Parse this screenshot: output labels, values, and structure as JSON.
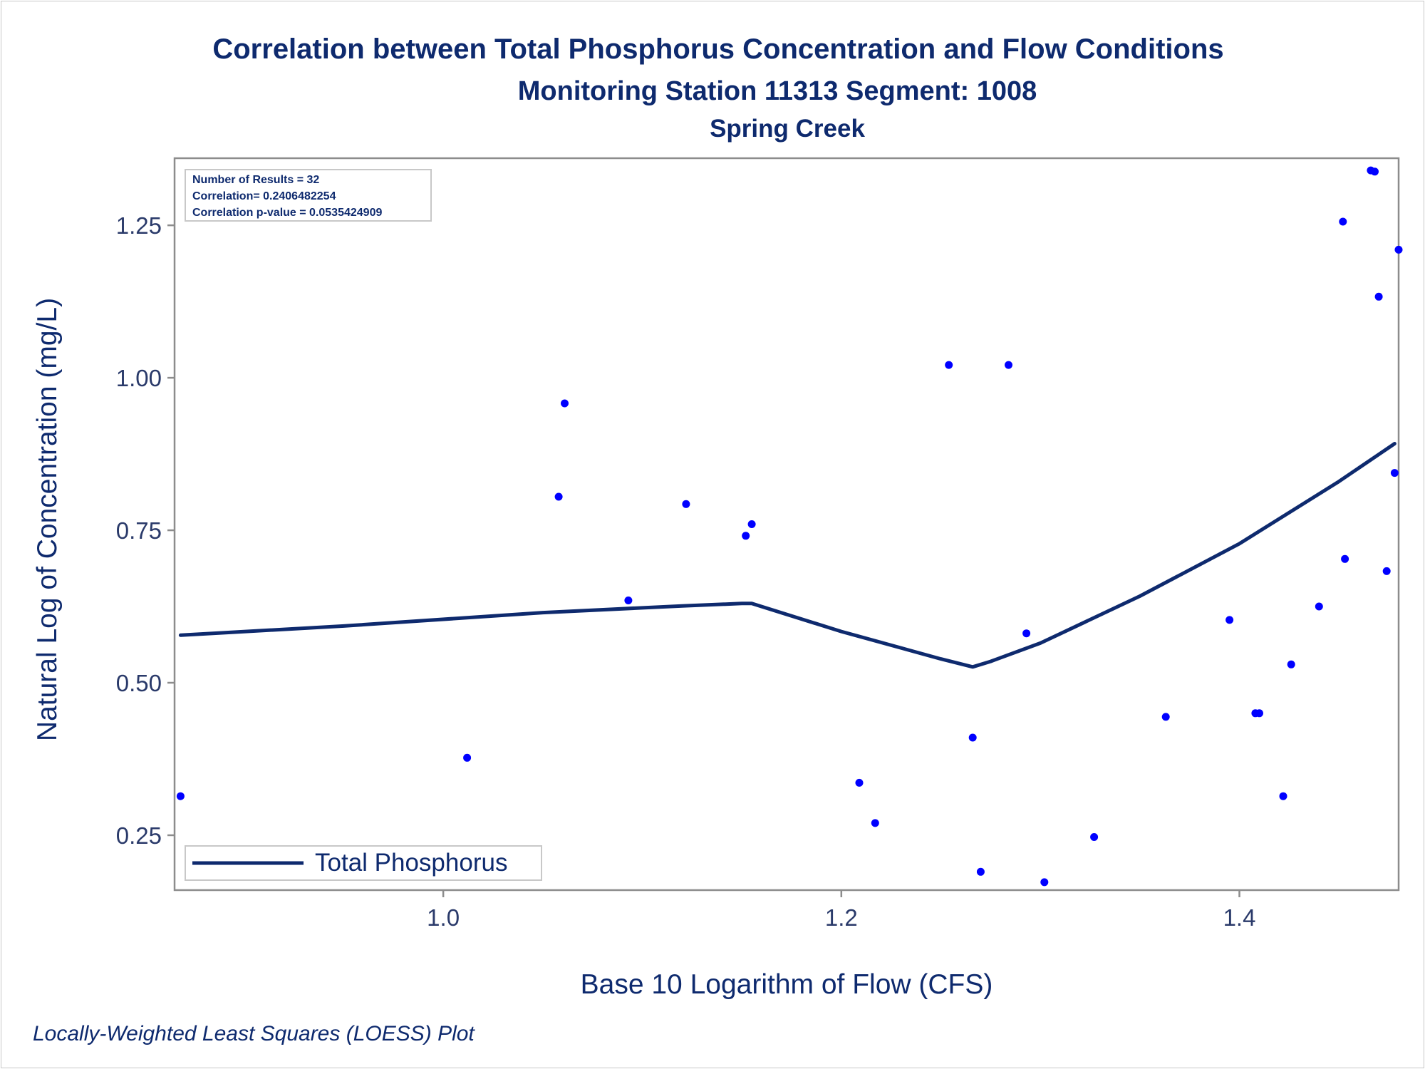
{
  "chart_data": {
    "type": "scatter",
    "title": "Correlation between Total Phosphorus Concentration and Flow Conditions",
    "subtitle": "Monitoring Station 11313 Segment: 1008",
    "subtitle2": "Spring Creek",
    "xlabel": "Base 10 Logarithm of Flow (CFS)",
    "ylabel": "Natural Log of Concentration (mg/L)",
    "xlim": [
      0.865,
      1.48
    ],
    "ylim": [
      0.16,
      1.36
    ],
    "xticks": [
      1.0,
      1.2,
      1.4
    ],
    "xtick_labels": [
      "1.0",
      "1.2",
      "1.4"
    ],
    "yticks": [
      0.25,
      0.5,
      0.75,
      1.0,
      1.25
    ],
    "ytick_labels": [
      "0.25",
      "0.50",
      "0.75",
      "1.00",
      "1.25"
    ],
    "grid": false,
    "legend_position": "bottom-left",
    "inset_lines": [
      "Number of Results = 32",
      "Correlation= 0.2406482254",
      "Correlation p-value = 0.0535424909"
    ],
    "footnote": "Locally-Weighted Least Squares (LOESS) Plot",
    "colors": {
      "points": "#0000ff",
      "line": "#0e2a6e",
      "text": "#0e2a6e",
      "frame": "#8c8c8c"
    },
    "scatter": {
      "x": [
        0.868,
        1.012,
        1.058,
        1.061,
        1.093,
        1.122,
        1.152,
        1.155,
        1.209,
        1.217,
        1.254,
        1.266,
        1.27,
        1.284,
        1.293,
        1.302,
        1.327,
        1.363,
        1.395,
        1.408,
        1.41,
        1.422,
        1.426,
        1.44,
        1.452,
        1.453,
        1.466,
        1.468,
        1.47,
        1.474,
        1.478,
        1.48
      ],
      "y": [
        0.314,
        0.377,
        0.805,
        0.958,
        0.635,
        0.793,
        0.741,
        0.76,
        0.336,
        0.27,
        1.021,
        0.41,
        0.19,
        1.021,
        0.581,
        0.173,
        0.247,
        0.444,
        0.603,
        0.45,
        0.45,
        0.314,
        0.53,
        0.625,
        1.256,
        0.703,
        1.34,
        1.338,
        1.133,
        0.683,
        0.844,
        1.21
      ]
    },
    "series": [
      {
        "name": "Total Phosphorus",
        "x": [
          0.868,
          0.95,
          1.05,
          1.12,
          1.15,
          1.155,
          1.2,
          1.25,
          1.266,
          1.275,
          1.3,
          1.35,
          1.4,
          1.45,
          1.478
        ],
        "y": [
          0.578,
          0.593,
          0.615,
          0.626,
          0.63,
          0.63,
          0.584,
          0.539,
          0.526,
          0.535,
          0.565,
          0.642,
          0.728,
          0.83,
          0.892
        ]
      }
    ]
  }
}
